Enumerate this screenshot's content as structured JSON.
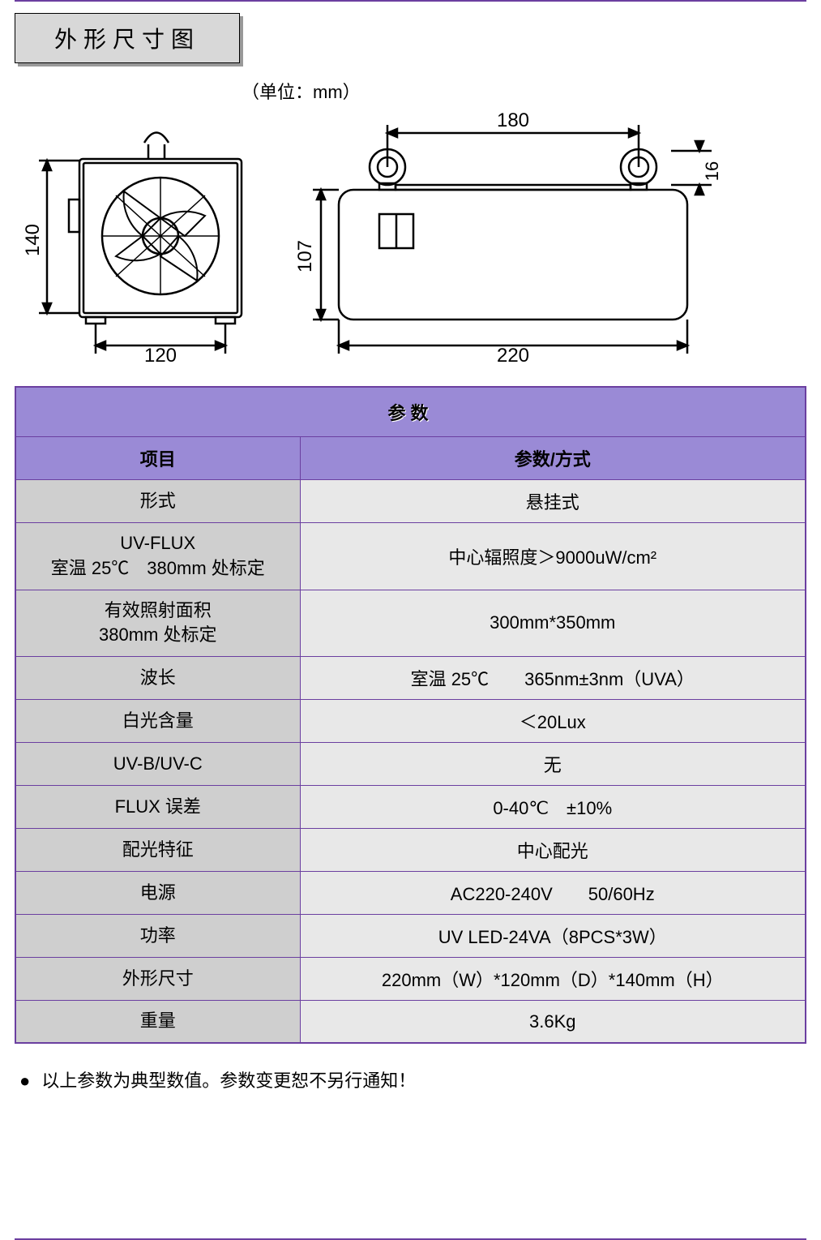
{
  "section_title": "外形尺寸图",
  "unit_label": "（单位：mm）",
  "drawing": {
    "front": {
      "height_dim": "140",
      "width_dim": "120"
    },
    "side": {
      "top_dim": "180",
      "ring_h_dim": "16",
      "height_dim": "107",
      "width_dim": "220"
    }
  },
  "table": {
    "title": "参数",
    "header_item": "项目",
    "header_value": "参数/方式",
    "colors": {
      "border": "#6b3fa0",
      "header_bg": "#9a8ad6",
      "item_bg": "#cfcfcf",
      "value_bg": "#e8e8e8"
    },
    "rows": [
      {
        "item": "形式",
        "value": "悬挂式"
      },
      {
        "item": "UV-FLUX\n室温 25℃　380mm 处标定",
        "value": "中心辐照度＞9000uW/cm²"
      },
      {
        "item": "有效照射面积\n380mm 处标定",
        "value": "300mm*350mm"
      },
      {
        "item": "波长",
        "value": "室温 25℃　　365nm±3nm（UVA）"
      },
      {
        "item": "白光含量",
        "value": "＜20Lux"
      },
      {
        "item": "UV-B/UV-C",
        "value": "无"
      },
      {
        "item": "FLUX 误差",
        "value": "0-40℃　±10%"
      },
      {
        "item": "配光特征",
        "value": "中心配光"
      },
      {
        "item": "电源",
        "value": "AC220-240V　　50/60Hz"
      },
      {
        "item": "功率",
        "value": "UV LED-24VA（8PCS*3W）"
      },
      {
        "item": "外形尺寸",
        "value": "220mm（W）*120mm（D）*140mm（H）"
      },
      {
        "item": "重量",
        "value": "3.6Kg"
      }
    ]
  },
  "note_text": "以上参数为典型数值。参数变更恕不另行通知！"
}
